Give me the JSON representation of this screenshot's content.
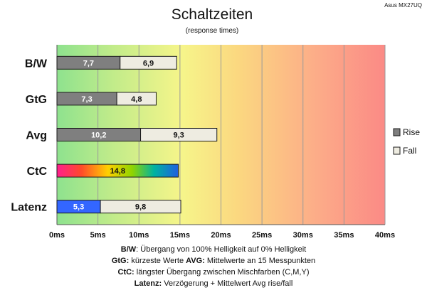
{
  "corner_label": "Asus MX27UQ",
  "chart_data": {
    "type": "bar",
    "orientation": "horizontal-stacked",
    "title": "Schaltzeiten",
    "subtitle": "(response times)",
    "categories": [
      "B/W",
      "GtG",
      "Avg",
      "CtC",
      "Latenz"
    ],
    "series": [
      {
        "name": "Rise",
        "values": [
          7.7,
          7.3,
          10.2,
          14.8,
          5.3
        ],
        "value_labels": [
          "7,7",
          "7,3",
          "10,2",
          "14,8",
          "5,3"
        ]
      },
      {
        "name": "Fall",
        "values": [
          6.9,
          4.8,
          9.3,
          null,
          9.8
        ],
        "value_labels": [
          "6,9",
          "4,8",
          "9,3",
          "",
          "9,8"
        ]
      }
    ],
    "xlim": [
      0,
      40
    ],
    "xticks": [
      0,
      5,
      10,
      15,
      20,
      25,
      30,
      35,
      40
    ],
    "xtick_labels": [
      "0ms",
      "5ms",
      "10ms",
      "15ms",
      "20ms",
      "25ms",
      "30ms",
      "35ms",
      "40ms"
    ],
    "grid": "vertical",
    "legend_position": "right",
    "background": "gradient green-yellow-red",
    "colors": {
      "rise": "#7f7f7f",
      "fall": "#eeece1",
      "latenz_rise": "#3366ff",
      "outline": "#1a1a1a"
    }
  },
  "footnotes": [
    [
      {
        "b": "B/W",
        "t": ":  Übergang von 100% Helligkeit auf 0% Helligkeit"
      }
    ],
    [
      {
        "b": "GtG:",
        "t": " kürzeste  Werte        "
      },
      {
        "b": "AVG:",
        "t": " Mittelwerte  an 15 Messpunkten"
      }
    ],
    [
      {
        "b": "CtC:",
        "t": " längster Übergang  zwischen Mischfarben  (C,M,Y)"
      }
    ],
    [
      {
        "b": "Latenz:",
        "t": " Verzögerung  + Mittelwert  Avg rise/fall"
      }
    ]
  ]
}
